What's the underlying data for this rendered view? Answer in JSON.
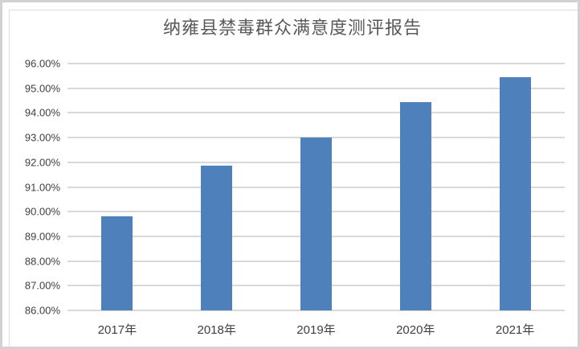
{
  "page": {
    "background": "#ffffff",
    "outer_border_color": "#d2d2d2",
    "chart_border_color": "#dcdcdc"
  },
  "chart_data": {
    "type": "bar",
    "title": "纳雍县禁毒群众满意度测评报告",
    "categories": [
      "2017年",
      "2018年",
      "2019年",
      "2020年",
      "2021年"
    ],
    "series": [
      {
        "name": "满意度",
        "values": [
          89.8,
          91.85,
          93.0,
          94.45,
          95.45
        ]
      }
    ],
    "ylim": [
      86,
      96
    ],
    "ytick_step": 1,
    "ytick_labels": [
      "96.00%",
      "95.00%",
      "94.00%",
      "93.00%",
      "92.00%",
      "91.00%",
      "90.00%",
      "89.00%",
      "88.00%",
      "87.00%",
      "86.00%"
    ],
    "xlabel": "",
    "ylabel": "",
    "grid": true,
    "legend_position": "none",
    "bar_color": "#4e80bc",
    "gridline_color": "#d9d9d9",
    "title_color": "#595959",
    "axis_label_color": "#404040"
  }
}
